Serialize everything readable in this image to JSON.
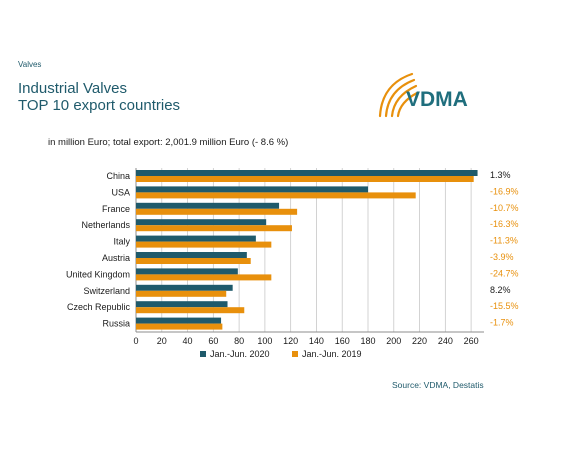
{
  "header": {
    "category": "Valves",
    "title_line1": "Industrial Valves",
    "title_line2": "TOP 10 export countries",
    "subtitle": "in million Euro; total export: 2,001.9 million Euro (- 8.6 %)",
    "logo_text": "VDMA"
  },
  "source": "Source: VDMA, Destatis",
  "colors": {
    "series_2020": "#1f5a6b",
    "series_2019": "#e8900c",
    "positive_change": "#1a1a1a",
    "negative_change": "#e8900c",
    "logo_teal": "#1f6e7d"
  },
  "chart_data": {
    "type": "bar",
    "orientation": "horizontal",
    "categories": [
      "China",
      "USA",
      "France",
      "Netherlands",
      "Italy",
      "Austria",
      "United Kingdom",
      "Switzerland",
      "Czech Republic",
      "Russia"
    ],
    "series": [
      {
        "name": "Jan.-Jun. 2020",
        "values": [
          265,
          180,
          111,
          101,
          93,
          86,
          79,
          75,
          71,
          66
        ]
      },
      {
        "name": "Jan.-Jun. 2019",
        "values": [
          262,
          217,
          125,
          121,
          105,
          89,
          105,
          70,
          84,
          67
        ]
      }
    ],
    "changes": [
      "1.3%",
      "-16.9%",
      "-10.7%",
      "-16.3%",
      "-11.3%",
      "-3.9%",
      "-24.7%",
      "8.2%",
      "-15.5%",
      "-1.7%"
    ],
    "xlim": [
      0,
      270
    ],
    "xticks": [
      0,
      20,
      40,
      60,
      80,
      100,
      120,
      140,
      160,
      180,
      200,
      220,
      240,
      260
    ],
    "grid": true,
    "legend_position": "bottom"
  }
}
